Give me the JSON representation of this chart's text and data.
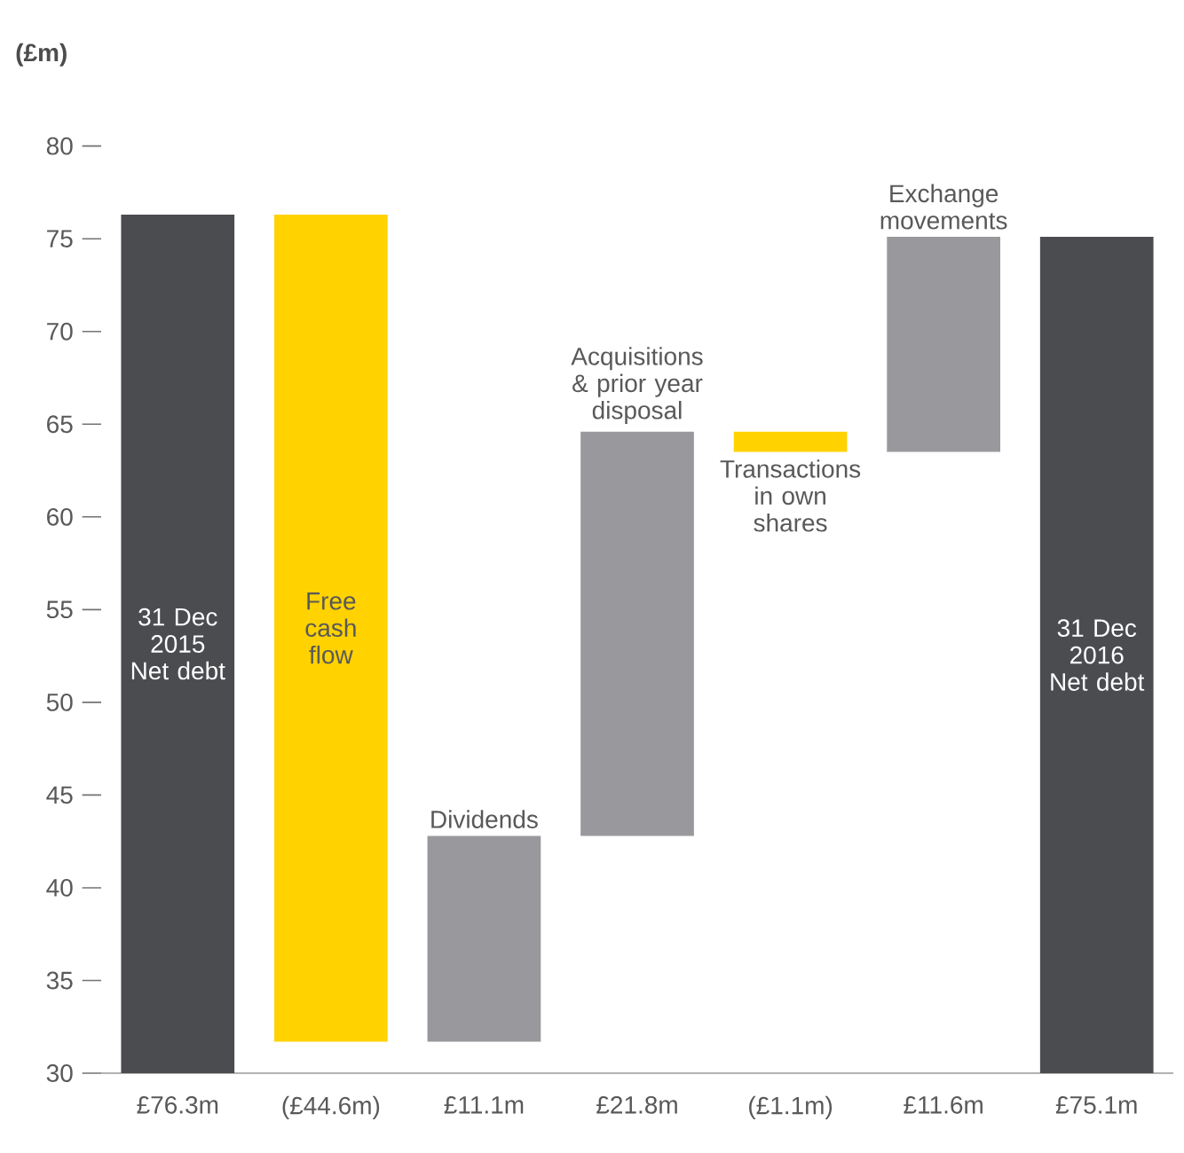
{
  "chart_data": {
    "type": "bar",
    "ylabel": "(£m)",
    "categories": [
      "31 Dec 2015 Net debt",
      "Free cash flow",
      "Dividends",
      "Acquisitions & prior year disposal",
      "Transactions in own shares",
      "Exchange movements",
      "31 Dec 2016 Net debt"
    ],
    "values": [
      46.3,
      -44.6,
      11.1,
      21.8,
      -1.1,
      11.6,
      45.1
    ],
    "base": [
      30,
      76.3,
      31.7,
      42.8,
      64.6,
      63.5,
      30
    ],
    "colors": [
      "#4a4c50",
      "#ffd200",
      "#99989c",
      "#99989c",
      "#ffd200",
      "#99989c",
      "#4a4c50"
    ],
    "value_labels": [
      "£76.3m",
      "(£44.6m)",
      "£11.1m",
      "£21.8m",
      "(£1.1m)",
      "£11.6m",
      "£75.1m"
    ],
    "ylim": [
      30,
      80
    ],
    "yticks": [
      30,
      35,
      40,
      45,
      50,
      55,
      60,
      65,
      70,
      75,
      80
    ]
  }
}
